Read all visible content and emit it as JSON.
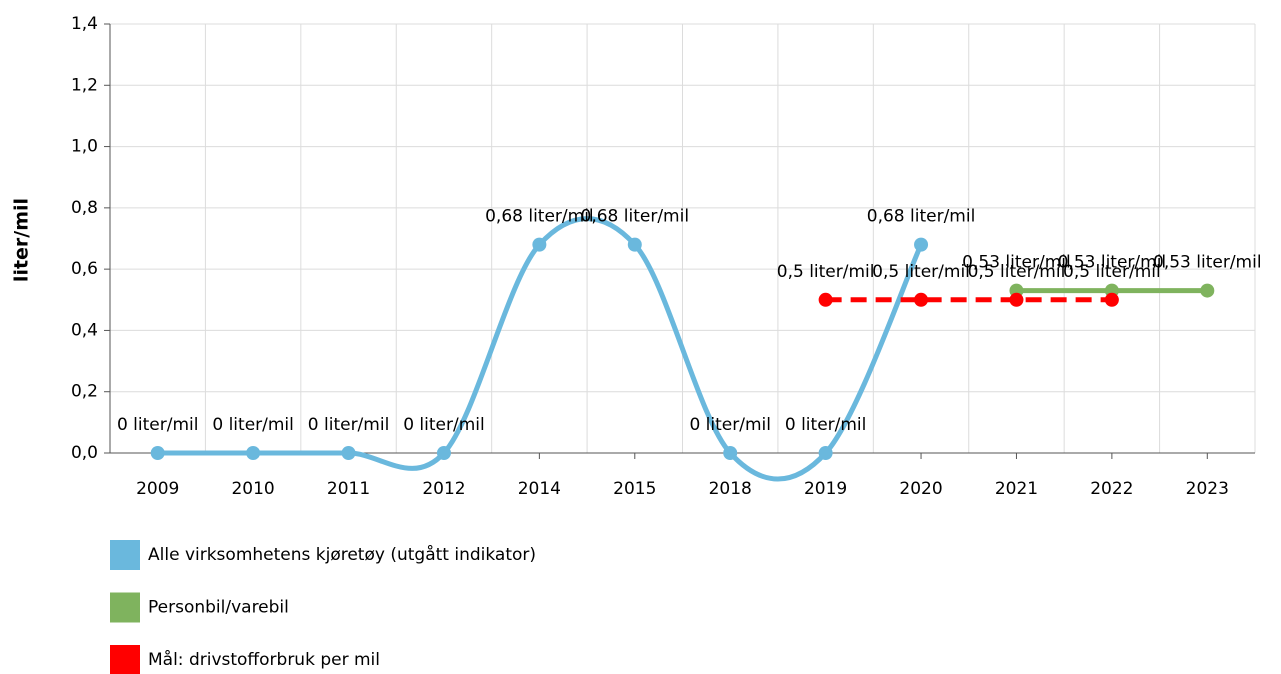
{
  "chart_data": {
    "type": "line",
    "y_label": "liter/mil",
    "categories": [
      "2009",
      "2010",
      "2011",
      "2012",
      "2014",
      "2015",
      "2018",
      "2019",
      "2020",
      "2021",
      "2022",
      "2023"
    ],
    "ylim": [
      0,
      1.4
    ],
    "yticks": [
      {
        "value": 0,
        "label": "0,0"
      },
      {
        "value": 0.2,
        "label": "0,2"
      },
      {
        "value": 0.4,
        "label": "0,4"
      },
      {
        "value": 0.6,
        "label": "0,6"
      },
      {
        "value": 0.8,
        "label": "0,8"
      },
      {
        "value": 1.0,
        "label": "1,0"
      },
      {
        "value": 1.2,
        "label": "1,2"
      },
      {
        "value": 1.4,
        "label": "1,4"
      }
    ],
    "grid": true,
    "series": [
      {
        "name": "Alle virksomhetens kjøretøy (utgått indikator)",
        "color": "#6ab8dd",
        "smooth": true,
        "values": [
          0,
          0,
          0,
          0,
          0.68,
          0.68,
          0,
          0,
          0.68,
          null,
          null,
          null
        ],
        "value_labels": [
          "0 liter/mil",
          "0 liter/mil",
          "0 liter/mil",
          "0 liter/mil",
          "0,68 liter/mil",
          "0,68 liter/mil",
          "0 liter/mil",
          "0 liter/mil",
          "0,68 liter/mil",
          null,
          null,
          null
        ]
      },
      {
        "name": "Personbil/varebil",
        "color": "#7fb35e",
        "values": [
          null,
          null,
          null,
          null,
          null,
          null,
          null,
          null,
          null,
          0.53,
          0.53,
          0.53
        ],
        "value_labels": [
          null,
          null,
          null,
          null,
          null,
          null,
          null,
          null,
          null,
          "0,53 liter/mil",
          "0,53 liter/mil",
          "0,53 liter/mil"
        ]
      },
      {
        "name": "Mål: drivstofforbruk per mil",
        "color": "#ff0000",
        "dashed": true,
        "values": [
          null,
          null,
          null,
          null,
          null,
          null,
          null,
          0.5,
          0.5,
          0.5,
          0.5,
          null
        ],
        "value_labels": [
          null,
          null,
          null,
          null,
          null,
          null,
          null,
          "0,5 liter/mil",
          "0,5 liter/mil",
          "0,5 liter/mil",
          "0,5 liter/mil",
          null
        ]
      }
    ]
  }
}
